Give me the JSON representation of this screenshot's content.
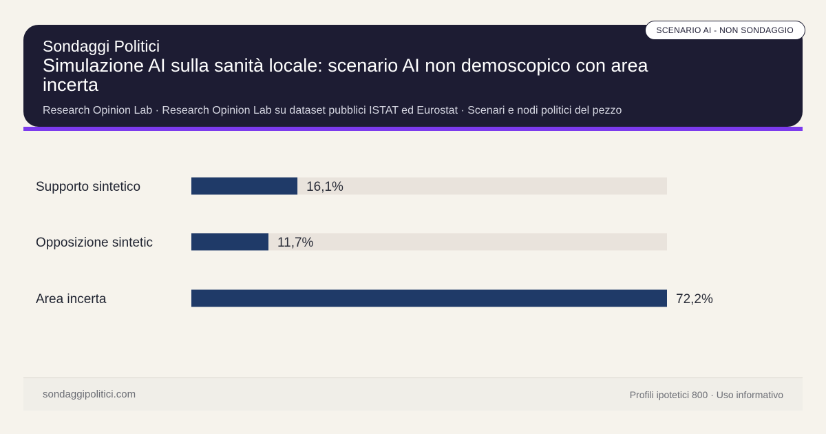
{
  "header": {
    "brand": "Sondaggi Politici",
    "title": "Simulazione AI sulla sanità locale: scenario AI non demoscopico con area incerta",
    "source": "Research Opinion Lab · Research Opinion Lab su dataset pubblici ISTAT ed Eurostat · Scenari e nodi politici del pezzo",
    "badge": "SCENARIO AI - NON SONDAGGIO"
  },
  "colors": {
    "header_bg": "#1d1c33",
    "accent": "#7c3aed",
    "bar": "#1f3a68",
    "track": "#e9e3dc",
    "background": "#f6f3ec"
  },
  "chart_data": {
    "type": "bar",
    "orientation": "horizontal",
    "categories": [
      "Supporto sintetico",
      "Opposizione sintetic",
      "Area incerta"
    ],
    "values": [
      16.1,
      11.7,
      72.2
    ],
    "value_labels": [
      "16,1%",
      "11,7%",
      "72,2%"
    ],
    "xlim": [
      0,
      72.2
    ],
    "grid": false,
    "legend": "none"
  },
  "footer": {
    "site": "sondaggipolitici.com",
    "note": "Profili ipotetici 800 · Uso informativo"
  }
}
